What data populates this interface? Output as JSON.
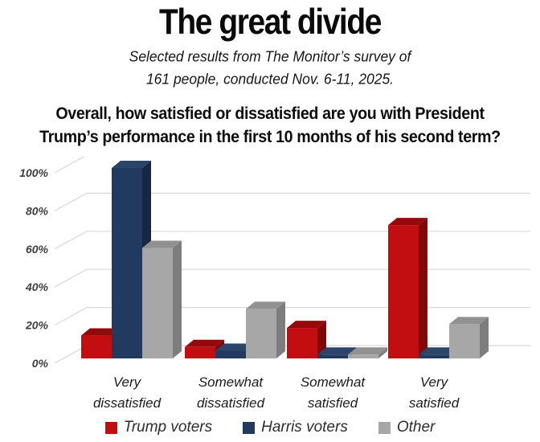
{
  "header": {
    "title": "The great divide",
    "subtitle_line1": "Selected results from The Monitor’s survey of",
    "subtitle_line2": "161 people, conducted Nov. 6-11, 2025.",
    "question_line1": "Overall, how satisfied or dissatisfied are you with President",
    "question_line2": "Trump’s performance in the first 10 months of his second term?"
  },
  "chart_data": {
    "type": "bar",
    "style": "3d-column",
    "title": "",
    "xlabel": "",
    "ylabel": "",
    "categories": [
      "Very dissatisfied",
      "Somewhat dissatisfied",
      "Somewhat satisfied",
      "Very satisfied"
    ],
    "series": [
      {
        "name": "Trump voters",
        "values": [
          12,
          6,
          16,
          70
        ],
        "color_front": "#c20d11",
        "color_top": "#95090c",
        "color_side": "#820709"
      },
      {
        "name": "Harris voters",
        "values": [
          100,
          4,
          2,
          2
        ],
        "color_front": "#223a5f",
        "color_top": "#2b4568",
        "color_side": "#162742"
      },
      {
        "name": "Other",
        "values": [
          58,
          26,
          2,
          18
        ],
        "color_front": "#a7a7a7",
        "color_top": "#919191",
        "color_side": "#7d7d7d"
      }
    ],
    "y_ticks": [
      "100%",
      "80%",
      "60%",
      "40%",
      "20%",
      "0%"
    ],
    "ylim": [
      0,
      100
    ],
    "grid": true,
    "grid_color": "#d8d8d8",
    "axis_label_color": "#3f3f3f",
    "legend_position": "bottom"
  }
}
